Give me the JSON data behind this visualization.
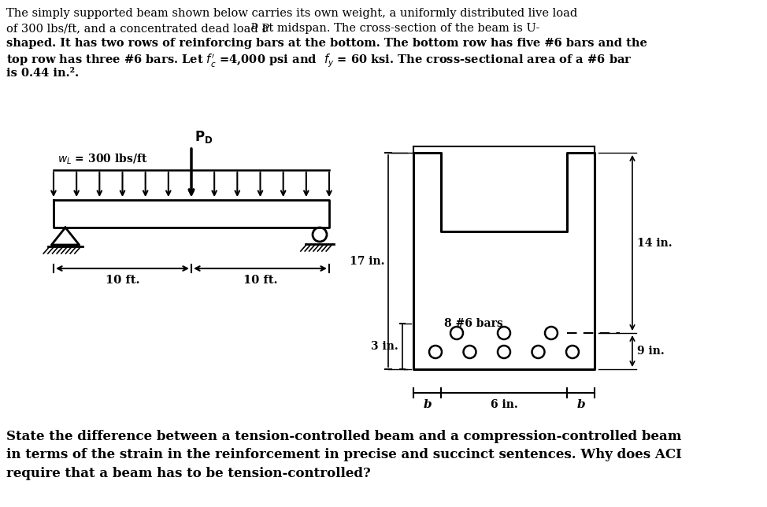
{
  "bg_color": "#ffffff",
  "wl_label": "wₗ = 300 lbs/ft",
  "pd_label": "P_D",
  "dist_label1": "10 ft.",
  "dist_label2": "10 ft.",
  "dim_17": "17 in.",
  "dim_3": "3 in.",
  "dim_14": "14 in.",
  "dim_9": "9 in.",
  "dim_6": "6 in.",
  "dim_b": "b",
  "bars_label": "8 #6 bars",
  "top_text_line1": "The simply supported beam shown below carries its own weight, a uniformly distributed live load",
  "top_text_line2": "of 300 lbs/ft, and a concentrated dead load P",
  "top_text_line3": "shaped. It has two rows of reinforcing bars at the bottom. The bottom row has five #6 bars and the",
  "top_text_line4": "top row has three #6 bars. Let ",
  "top_text_line5": "is 0.44 in.².",
  "q_text": "State the difference between a tension-controlled beam and a compression-controlled beam\nin terms of the strain in the reinforcement in precise and succinct sentences. Why does ACI\nrequire that a beam has to be tension-controlled?"
}
